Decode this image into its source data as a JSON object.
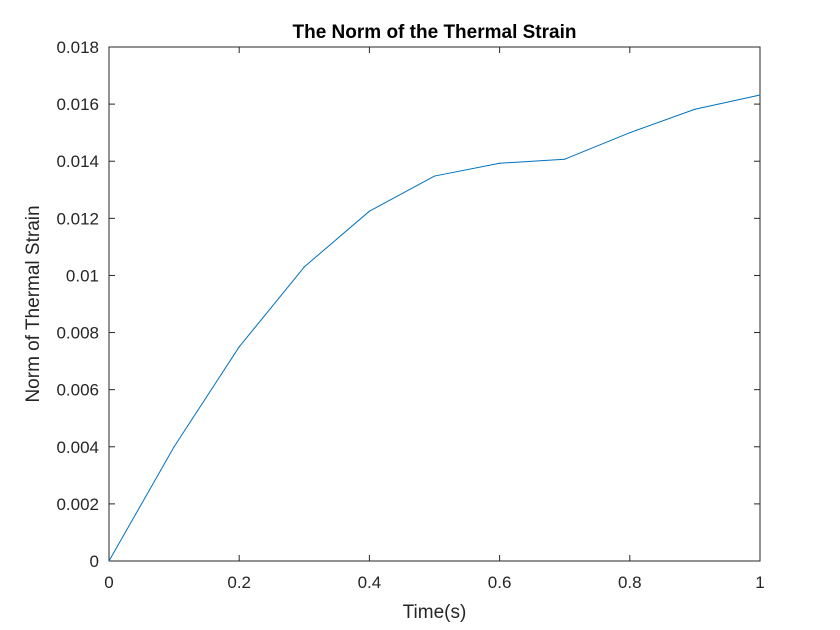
{
  "chart_data": {
    "type": "line",
    "title": "The Norm of the Thermal Strain",
    "xlabel": "Time(s)",
    "ylabel": "Norm of Thermal Strain",
    "xlim": [
      0,
      1
    ],
    "ylim": [
      0,
      0.018
    ],
    "xticks": [
      0,
      0.2,
      0.4,
      0.6,
      0.8,
      1
    ],
    "xtick_labels": [
      "0",
      "0.2",
      "0.4",
      "0.6",
      "0.8",
      "1"
    ],
    "yticks": [
      0,
      0.002,
      0.004,
      0.006,
      0.008,
      0.01,
      0.012,
      0.014,
      0.016,
      0.018
    ],
    "ytick_labels": [
      "0",
      "0.002",
      "0.004",
      "0.006",
      "0.008",
      "0.01",
      "0.012",
      "0.014",
      "0.016",
      "0.018"
    ],
    "grid": false,
    "box": true,
    "series": [
      {
        "color": "#0072bd",
        "x": [
          0,
          0.1,
          0.2,
          0.3,
          0.4,
          0.5,
          0.6,
          0.7,
          0.8,
          0.9,
          1.0
        ],
        "y": [
          0,
          0.004,
          0.0075,
          0.0103,
          0.01225,
          0.01348,
          0.01393,
          0.01407,
          0.015,
          0.01582,
          0.01632
        ]
      }
    ]
  }
}
